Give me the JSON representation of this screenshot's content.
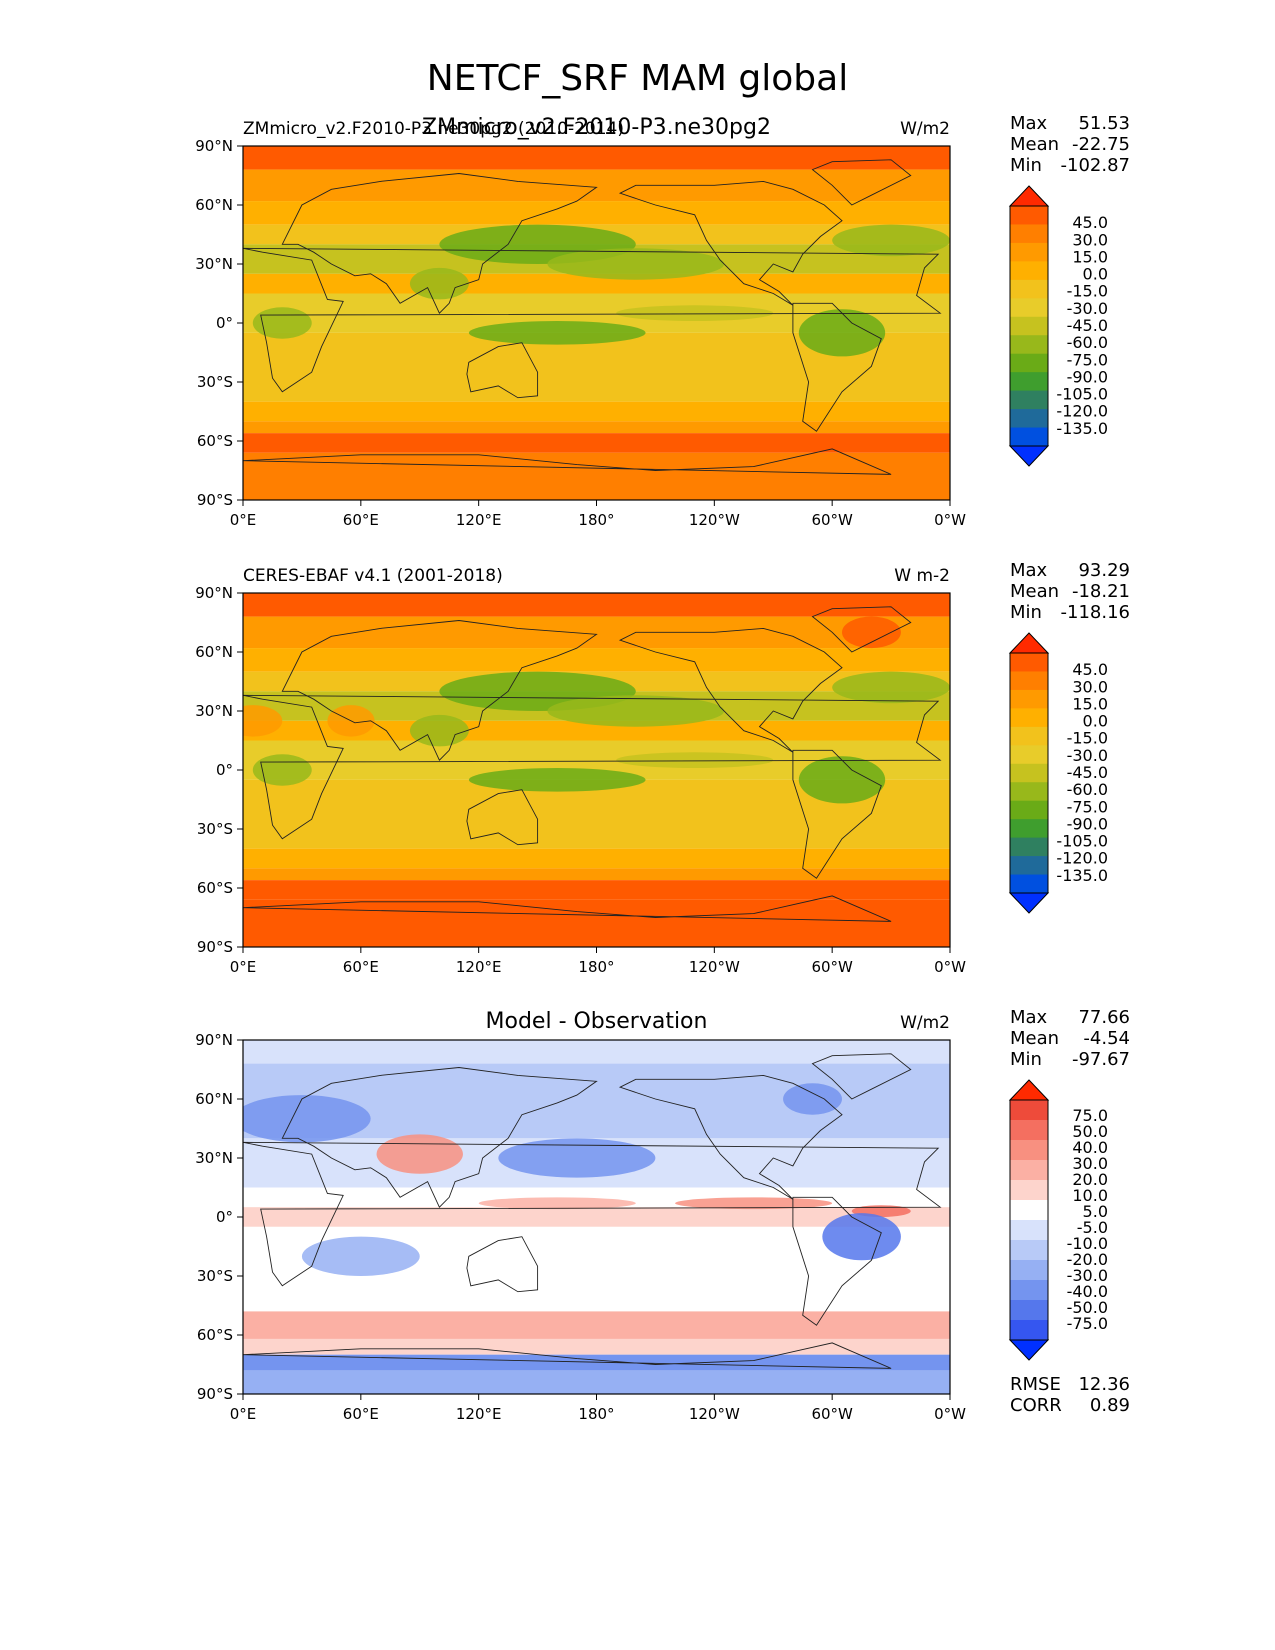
{
  "figure": {
    "title": "NETCF_SRF MAM global"
  },
  "chart_data": [
    {
      "type": "heatmap",
      "left_title": "ZMmicro_v2.F2010-P3.ne30pg2 (2010-2014)",
      "center_title": "ZMmicro_v2.F2010-P3.ne30pg2",
      "units": "W/m2",
      "stats": {
        "max_label": "Max",
        "max": "51.53",
        "mean_label": "Mean",
        "mean": "-22.75",
        "min_label": "Min",
        "min": "-102.87"
      },
      "colorbar": {
        "ticks": [
          "45.0",
          "30.0",
          "15.0",
          "0.0",
          "-15.0",
          "-30.0",
          "-45.0",
          "-60.0",
          "-75.0",
          "-90.0",
          "-105.0",
          "-120.0",
          "-135.0"
        ]
      },
      "x_ticks": [
        "0°E",
        "60°E",
        "120°E",
        "180°",
        "120°W",
        "60°W",
        "0°W"
      ],
      "y_ticks": [
        "90°N",
        "60°N",
        "30°N",
        "0°",
        "30°S",
        "60°S",
        "90°S"
      ],
      "xlim": [
        0,
        360
      ],
      "ylim": [
        -90,
        90
      ]
    },
    {
      "type": "heatmap",
      "left_title": "CERES-EBAF v4.1 (2001-2018)",
      "center_title": "",
      "units": "W m-2",
      "stats": {
        "max_label": "Max",
        "max": "93.29",
        "mean_label": "Mean",
        "mean": "-18.21",
        "min_label": "Min",
        "min": "-118.16"
      },
      "colorbar": {
        "ticks": [
          "45.0",
          "30.0",
          "15.0",
          "0.0",
          "-15.0",
          "-30.0",
          "-45.0",
          "-60.0",
          "-75.0",
          "-90.0",
          "-105.0",
          "-120.0",
          "-135.0"
        ]
      },
      "x_ticks": [
        "0°E",
        "60°E",
        "120°E",
        "180°",
        "120°W",
        "60°W",
        "0°W"
      ],
      "y_ticks": [
        "90°N",
        "60°N",
        "30°N",
        "0°",
        "30°S",
        "60°S",
        "90°S"
      ],
      "xlim": [
        0,
        360
      ],
      "ylim": [
        -90,
        90
      ]
    },
    {
      "type": "heatmap",
      "left_title": "",
      "center_title": "Model - Observation",
      "units": "W/m2",
      "stats": {
        "max_label": "Max",
        "max": "77.66",
        "mean_label": "Mean",
        "mean": "-4.54",
        "min_label": "Min",
        "min": "-97.67"
      },
      "colorbar": {
        "ticks": [
          "75.0",
          "50.0",
          "40.0",
          "30.0",
          "20.0",
          "10.0",
          "5.0",
          "-5.0",
          "-10.0",
          "-20.0",
          "-30.0",
          "-40.0",
          "-50.0",
          "-75.0"
        ]
      },
      "metrics": {
        "rmse_label": "RMSE",
        "rmse": "12.36",
        "corr_label": "CORR",
        "corr": "0.89"
      },
      "x_ticks": [
        "0°E",
        "60°E",
        "120°E",
        "180°",
        "120°W",
        "60°W",
        "0°W"
      ],
      "y_ticks": [
        "90°N",
        "60°N",
        "30°N",
        "0°",
        "30°S",
        "60°S",
        "90°S"
      ],
      "xlim": [
        0,
        360
      ],
      "ylim": [
        -90,
        90
      ]
    }
  ],
  "colors": {
    "warm": [
      "#ff2a00",
      "#ff5a00",
      "#ff7f00",
      "#ff9a00",
      "#ffb000",
      "#f2c21c",
      "#e8cc2a",
      "#c6c21f",
      "#98b81b",
      "#6aab17",
      "#3f9e2e",
      "#2f8060",
      "#1f6a9a",
      "#0050e0",
      "#0030ff"
    ],
    "diff": [
      "#ff2a00",
      "#ee4b3a",
      "#f46f60",
      "#f89080",
      "#fbb0a4",
      "#fdd4cc",
      "#ffffff",
      "#d8e2fb",
      "#b8caf7",
      "#96b0f3",
      "#7494ef",
      "#5577ec",
      "#3556f0",
      "#0030ff"
    ]
  }
}
